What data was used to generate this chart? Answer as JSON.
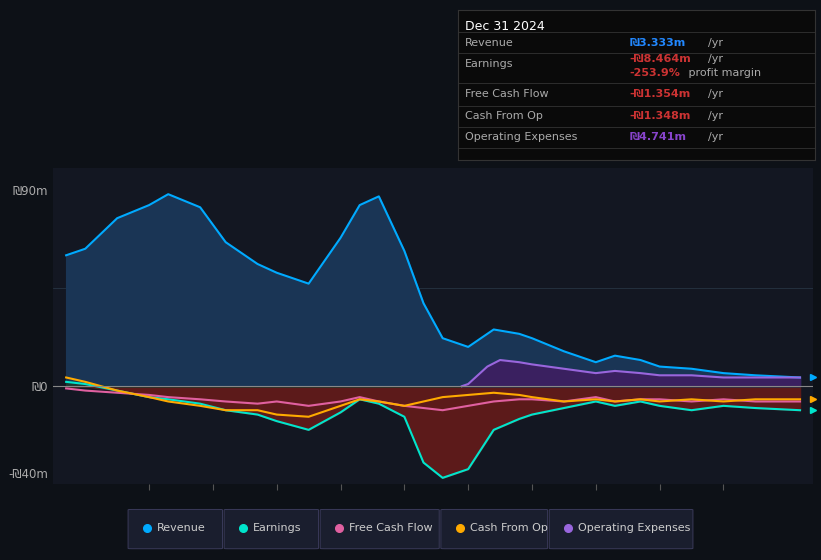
{
  "bg_color": "#131722",
  "plot_bg": "#131722",
  "outer_bg": "#0d1117",
  "ylim": [
    -45,
    100
  ],
  "xlim": [
    2013.5,
    2025.4
  ],
  "yticks": [
    -40,
    0,
    90
  ],
  "ytick_labels": [
    "-₪40m",
    "₪0",
    "₪90m"
  ],
  "xticks": [
    2015,
    2016,
    2017,
    2018,
    2019,
    2020,
    2021,
    2022,
    2023,
    2024
  ],
  "revenue_color": "#00aaff",
  "revenue_fill": "#1a3555",
  "earnings_fill_neg": "#5c1a1a",
  "earnings_fill_pos": "#1a3a2a",
  "opex_fill": "#3a2060",
  "zero_line_color": "#888888",
  "grid_color": "#2a3a4a",
  "revenue_x": [
    2013.7,
    2014.0,
    2014.5,
    2015.0,
    2015.3,
    2015.8,
    2016.2,
    2016.7,
    2017.0,
    2017.5,
    2018.0,
    2018.3,
    2018.6,
    2019.0,
    2019.3,
    2019.6,
    2020.0,
    2020.4,
    2020.8,
    2021.0,
    2021.5,
    2022.0,
    2022.3,
    2022.7,
    2023.0,
    2023.5,
    2024.0,
    2024.5,
    2025.2
  ],
  "revenue_y": [
    60,
    63,
    77,
    83,
    88,
    82,
    66,
    56,
    52,
    47,
    68,
    83,
    87,
    62,
    38,
    22,
    18,
    26,
    24,
    22,
    16,
    11,
    14,
    12,
    9,
    8,
    6,
    5,
    4
  ],
  "earnings_x": [
    2013.7,
    2014.0,
    2014.5,
    2015.0,
    2015.3,
    2015.8,
    2016.2,
    2016.7,
    2017.0,
    2017.5,
    2018.0,
    2018.3,
    2018.6,
    2019.0,
    2019.3,
    2019.6,
    2020.0,
    2020.4,
    2020.8,
    2021.0,
    2021.5,
    2022.0,
    2022.3,
    2022.7,
    2023.0,
    2023.5,
    2024.0,
    2024.5,
    2025.2
  ],
  "earnings_y": [
    2,
    1,
    -2,
    -5,
    -6,
    -8,
    -11,
    -13,
    -16,
    -20,
    -12,
    -6,
    -8,
    -14,
    -35,
    -42,
    -38,
    -20,
    -15,
    -13,
    -10,
    -7,
    -9,
    -7,
    -9,
    -11,
    -9,
    -10,
    -11
  ],
  "fcf_x": [
    2013.7,
    2014.0,
    2014.5,
    2015.0,
    2015.3,
    2015.8,
    2016.2,
    2016.7,
    2017.0,
    2017.5,
    2018.0,
    2018.3,
    2018.6,
    2019.0,
    2019.3,
    2019.6,
    2020.0,
    2020.4,
    2020.8,
    2021.0,
    2021.5,
    2022.0,
    2022.3,
    2022.7,
    2023.0,
    2023.5,
    2024.0,
    2024.5,
    2025.2
  ],
  "fcf_y": [
    -1,
    -2,
    -3,
    -4,
    -5,
    -6,
    -7,
    -8,
    -7,
    -9,
    -7,
    -5,
    -7,
    -9,
    -10,
    -11,
    -9,
    -7,
    -6,
    -6,
    -7,
    -5,
    -7,
    -6,
    -6,
    -7,
    -6,
    -7,
    -7
  ],
  "cashop_x": [
    2013.7,
    2014.0,
    2014.5,
    2015.0,
    2015.3,
    2015.8,
    2016.2,
    2016.7,
    2017.0,
    2017.5,
    2018.0,
    2018.3,
    2018.6,
    2019.0,
    2019.3,
    2019.6,
    2020.0,
    2020.4,
    2020.8,
    2021.0,
    2021.5,
    2022.0,
    2022.3,
    2022.7,
    2023.0,
    2023.5,
    2024.0,
    2024.5,
    2025.2
  ],
  "cashop_y": [
    4,
    2,
    -2,
    -5,
    -7,
    -9,
    -11,
    -11,
    -13,
    -14,
    -9,
    -6,
    -7,
    -9,
    -7,
    -5,
    -4,
    -3,
    -4,
    -5,
    -7,
    -6,
    -7,
    -6,
    -7,
    -6,
    -7,
    -6,
    -6
  ],
  "opex_x": [
    2019.9,
    2020.0,
    2020.3,
    2020.5,
    2020.8,
    2021.0,
    2021.5,
    2022.0,
    2022.3,
    2022.7,
    2023.0,
    2023.5,
    2024.0,
    2024.5,
    2025.2
  ],
  "opex_y": [
    0,
    1,
    9,
    12,
    11,
    10,
    8,
    6,
    7,
    6,
    5,
    5,
    4,
    4,
    4
  ],
  "revenue_line_color": "#00aaff",
  "earnings_line_color": "#00e5cc",
  "fcf_line_color": "#e060a0",
  "cashop_line_color": "#ffaa00",
  "opex_line_color": "#9966dd",
  "legend_items": [
    {
      "label": "Revenue",
      "color": "#00aaff"
    },
    {
      "label": "Earnings",
      "color": "#00e5cc"
    },
    {
      "label": "Free Cash Flow",
      "color": "#e060a0"
    },
    {
      "label": "Cash From Op",
      "color": "#ffaa00"
    },
    {
      "label": "Operating Expenses",
      "color": "#9966dd"
    }
  ],
  "info_title": "Dec 31 2024",
  "info_label_color": "#aaaaaa",
  "info_bg": "#0a0a0a",
  "info_border": "#333333"
}
